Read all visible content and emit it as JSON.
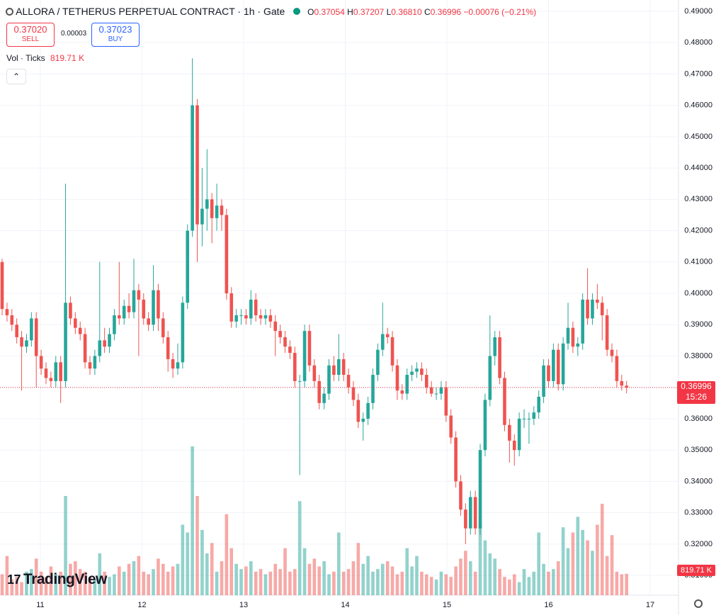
{
  "header": {
    "title": "ALLORA / TETHERUS PERPETUAL CONTRACT · 1h · Gate",
    "ohlc_labels": [
      "O",
      "H",
      "L",
      "C"
    ],
    "ohlc": [
      "0.37054",
      "0.37207",
      "0.36810",
      "0.36996"
    ],
    "change": "−0.00076 (−0.21%)",
    "sell_price": "0.37020",
    "sell": "SELL",
    "spread": "0.00003",
    "buy_price": "0.37023",
    "buy": "BUY",
    "volume_title": "Vol · Ticks",
    "volume_value": "819.71 K",
    "last_price": "0.36996",
    "countdown": "15:26",
    "logo": "TradingView"
  },
  "chart_data": {
    "type": "candlestick",
    "up_color": "#26a69a",
    "down_color": "#ef5350",
    "grid": true,
    "xlim": [
      10.603,
      17.279
    ],
    "xticks": [
      11,
      12,
      13,
      14,
      15,
      16,
      17
    ],
    "ylim": [
      0.3037,
      0.4936
    ],
    "yticks": [
      {
        "value": 0.31,
        "label": "0.31000"
      },
      {
        "value": 0.32,
        "label": "0.32000"
      },
      {
        "value": 0.33,
        "label": "0.33000"
      },
      {
        "value": 0.34,
        "label": "0.34000"
      },
      {
        "value": 0.35,
        "label": "0.35000"
      },
      {
        "value": 0.36,
        "label": "0.36000"
      },
      {
        "value": 0.37,
        "label": "0.37000"
      },
      {
        "value": 0.38,
        "label": "0.38000"
      },
      {
        "value": 0.39,
        "label": "0.39000"
      },
      {
        "value": 0.4,
        "label": "0.40000"
      },
      {
        "value": 0.41,
        "label": "0.41000"
      },
      {
        "value": 0.42,
        "label": "0.42000"
      },
      {
        "value": 0.43,
        "label": "0.43000"
      },
      {
        "value": 0.44,
        "label": "0.44000"
      },
      {
        "value": 0.45,
        "label": "0.45000"
      },
      {
        "value": 0.46,
        "label": "0.46000"
      },
      {
        "value": 0.47,
        "label": "0.47000"
      },
      {
        "value": 0.48,
        "label": "0.48000"
      },
      {
        "value": 0.49,
        "label": "0.49000"
      }
    ],
    "x": [
      10.624,
      10.672,
      10.72,
      10.768,
      10.816,
      10.864,
      10.912,
      10.96,
      11.008,
      11.056,
      11.104,
      11.152,
      11.2,
      11.248,
      11.296,
      11.344,
      11.392,
      11.44,
      11.488,
      11.536,
      11.584,
      11.632,
      11.68,
      11.728,
      11.776,
      11.824,
      11.872,
      11.92,
      11.968,
      12.016,
      12.064,
      12.112,
      12.16,
      12.208,
      12.256,
      12.304,
      12.352,
      12.4,
      12.448,
      12.496,
      12.544,
      12.592,
      12.64,
      12.688,
      12.736,
      12.784,
      12.832,
      12.88,
      12.928,
      12.976,
      13.024,
      13.072,
      13.12,
      13.168,
      13.216,
      13.264,
      13.312,
      13.36,
      13.408,
      13.456,
      13.504,
      13.552,
      13.6,
      13.648,
      13.696,
      13.744,
      13.792,
      13.84,
      13.888,
      13.936,
      13.984,
      14.032,
      14.08,
      14.128,
      14.176,
      14.224,
      14.272,
      14.32,
      14.368,
      14.416,
      14.464,
      14.512,
      14.56,
      14.608,
      14.656,
      14.704,
      14.752,
      14.8,
      14.848,
      14.896,
      14.944,
      14.992,
      15.04,
      15.088,
      15.136,
      15.184,
      15.232,
      15.28,
      15.328,
      15.376,
      15.424,
      15.472,
      15.52,
      15.568,
      15.616,
      15.664,
      15.712,
      15.76,
      15.808,
      15.856,
      15.904,
      15.952,
      16.0,
      16.048,
      16.096,
      16.144,
      16.192,
      16.24,
      16.288,
      16.336,
      16.384,
      16.432,
      16.48,
      16.528,
      16.576,
      16.624,
      16.672,
      16.72,
      16.768
    ],
    "open": [
      0.41,
      0.395,
      0.393,
      0.39,
      0.386,
      0.383,
      0.385,
      0.392,
      0.38,
      0.376,
      0.373,
      0.372,
      0.378,
      0.372,
      0.397,
      0.392,
      0.389,
      0.387,
      0.378,
      0.376,
      0.38,
      0.385,
      0.383,
      0.387,
      0.393,
      0.392,
      0.396,
      0.394,
      0.401,
      0.398,
      0.392,
      0.39,
      0.401,
      0.392,
      0.386,
      0.379,
      0.376,
      0.378,
      0.397,
      0.42,
      0.46,
      0.422,
      0.427,
      0.43,
      0.424,
      0.428,
      0.425,
      0.4,
      0.391,
      0.393,
      0.393,
      0.392,
      0.398,
      0.393,
      0.392,
      0.393,
      0.391,
      0.388,
      0.386,
      0.383,
      0.381,
      0.372,
      0.372,
      0.388,
      0.377,
      0.372,
      0.365,
      0.368,
      0.377,
      0.374,
      0.379,
      0.374,
      0.37,
      0.366,
      0.359,
      0.36,
      0.365,
      0.374,
      0.382,
      0.387,
      0.386,
      0.377,
      0.369,
      0.368,
      0.374,
      0.375,
      0.376,
      0.374,
      0.37,
      0.368,
      0.368,
      0.37,
      0.361,
      0.354,
      0.34,
      0.331,
      0.325,
      0.335,
      0.325,
      0.35,
      0.366,
      0.38,
      0.386,
      0.373,
      0.358,
      0.353,
      0.35,
      0.36,
      0.36,
      0.36,
      0.362,
      0.367,
      0.377,
      0.372,
      0.382,
      0.371,
      0.384,
      0.389,
      0.383,
      0.384,
      0.398,
      0.392,
      0.398,
      0.397,
      0.393,
      0.382,
      0.38,
      0.372,
      0.37054
    ],
    "high": [
      0.411,
      0.397,
      0.395,
      0.392,
      0.388,
      0.387,
      0.394,
      0.394,
      0.382,
      0.378,
      0.375,
      0.38,
      0.38,
      0.435,
      0.399,
      0.394,
      0.391,
      0.389,
      0.38,
      0.382,
      0.41,
      0.389,
      0.389,
      0.395,
      0.41,
      0.398,
      0.4,
      0.411,
      0.403,
      0.4,
      0.394,
      0.409,
      0.403,
      0.394,
      0.388,
      0.381,
      0.384,
      0.399,
      0.422,
      0.475,
      0.462,
      0.44,
      0.446,
      0.432,
      0.435,
      0.43,
      0.427,
      0.402,
      0.395,
      0.395,
      0.395,
      0.401,
      0.4,
      0.395,
      0.395,
      0.395,
      0.393,
      0.39,
      0.388,
      0.385,
      0.383,
      0.374,
      0.39,
      0.39,
      0.379,
      0.374,
      0.37,
      0.379,
      0.38,
      0.387,
      0.381,
      0.376,
      0.372,
      0.368,
      0.362,
      0.367,
      0.376,
      0.384,
      0.397,
      0.389,
      0.388,
      0.379,
      0.371,
      0.376,
      0.377,
      0.378,
      0.378,
      0.376,
      0.372,
      0.37,
      0.372,
      0.372,
      0.363,
      0.356,
      0.342,
      0.333,
      0.337,
      0.337,
      0.352,
      0.368,
      0.393,
      0.388,
      0.388,
      0.375,
      0.36,
      0.355,
      0.362,
      0.363,
      0.362,
      0.364,
      0.369,
      0.379,
      0.379,
      0.384,
      0.384,
      0.386,
      0.397,
      0.391,
      0.386,
      0.4,
      0.408,
      0.4,
      0.403,
      0.399,
      0.395,
      0.384,
      0.382,
      0.374,
      0.37207
    ],
    "low": [
      0.393,
      0.391,
      0.388,
      0.384,
      0.369,
      0.381,
      0.383,
      0.37,
      0.374,
      0.371,
      0.37,
      0.37,
      0.365,
      0.37,
      0.39,
      0.387,
      0.385,
      0.376,
      0.374,
      0.374,
      0.378,
      0.381,
      0.381,
      0.385,
      0.39,
      0.39,
      0.392,
      0.392,
      0.38,
      0.39,
      0.388,
      0.388,
      0.388,
      0.384,
      0.375,
      0.373,
      0.374,
      0.376,
      0.395,
      0.418,
      0.41,
      0.415,
      0.42,
      0.416,
      0.42,
      0.42,
      0.398,
      0.389,
      0.389,
      0.39,
      0.39,
      0.39,
      0.391,
      0.39,
      0.39,
      0.389,
      0.38,
      0.384,
      0.381,
      0.379,
      0.37,
      0.342,
      0.37,
      0.375,
      0.37,
      0.363,
      0.363,
      0.366,
      0.372,
      0.372,
      0.372,
      0.368,
      0.364,
      0.357,
      0.353,
      0.358,
      0.363,
      0.372,
      0.38,
      0.384,
      0.375,
      0.366,
      0.366,
      0.366,
      0.372,
      0.373,
      0.372,
      0.368,
      0.367,
      0.366,
      0.366,
      0.359,
      0.352,
      0.338,
      0.329,
      0.32,
      0.323,
      0.323,
      0.323,
      0.348,
      0.364,
      0.377,
      0.371,
      0.356,
      0.346,
      0.345,
      0.348,
      0.357,
      0.352,
      0.358,
      0.36,
      0.365,
      0.37,
      0.37,
      0.369,
      0.369,
      0.382,
      0.381,
      0.38,
      0.382,
      0.39,
      0.39,
      0.395,
      0.385,
      0.38,
      0.378,
      0.37,
      0.369,
      0.3681
    ],
    "close": [
      0.395,
      0.393,
      0.39,
      0.386,
      0.383,
      0.385,
      0.392,
      0.38,
      0.376,
      0.373,
      0.372,
      0.378,
      0.372,
      0.397,
      0.392,
      0.389,
      0.387,
      0.378,
      0.376,
      0.38,
      0.385,
      0.383,
      0.387,
      0.393,
      0.392,
      0.396,
      0.394,
      0.401,
      0.398,
      0.392,
      0.39,
      0.401,
      0.392,
      0.386,
      0.379,
      0.376,
      0.378,
      0.397,
      0.42,
      0.46,
      0.422,
      0.427,
      0.43,
      0.424,
      0.428,
      0.425,
      0.4,
      0.391,
      0.393,
      0.393,
      0.392,
      0.398,
      0.393,
      0.392,
      0.393,
      0.391,
      0.388,
      0.386,
      0.383,
      0.381,
      0.372,
      0.372,
      0.388,
      0.377,
      0.372,
      0.365,
      0.368,
      0.377,
      0.374,
      0.379,
      0.374,
      0.37,
      0.366,
      0.359,
      0.36,
      0.365,
      0.374,
      0.382,
      0.387,
      0.386,
      0.377,
      0.369,
      0.368,
      0.374,
      0.375,
      0.376,
      0.374,
      0.37,
      0.368,
      0.368,
      0.37,
      0.361,
      0.354,
      0.34,
      0.331,
      0.325,
      0.335,
      0.325,
      0.35,
      0.366,
      0.38,
      0.386,
      0.373,
      0.358,
      0.353,
      0.35,
      0.36,
      0.36,
      0.36,
      0.362,
      0.367,
      0.377,
      0.372,
      0.382,
      0.371,
      0.384,
      0.389,
      0.383,
      0.384,
      0.398,
      0.392,
      0.398,
      0.397,
      0.393,
      0.382,
      0.38,
      0.372,
      0.37054,
      0.36996
    ],
    "volume": [
      800,
      1500,
      600,
      700,
      500,
      900,
      1000,
      1400,
      900,
      700,
      1100,
      800,
      900,
      3800,
      1200,
      1300,
      1000,
      900,
      700,
      600,
      1600,
      900,
      700,
      800,
      1100,
      900,
      1200,
      1300,
      1500,
      900,
      800,
      1000,
      1400,
      1200,
      900,
      1100,
      1200,
      2700,
      2400,
      5700,
      3800,
      2500,
      1600,
      2000,
      900,
      1300,
      3100,
      1800,
      1200,
      1000,
      1100,
      1300,
      900,
      1000,
      800,
      900,
      1200,
      1000,
      1800,
      900,
      1000,
      3600,
      1800,
      1200,
      1400,
      1100,
      1300,
      800,
      900,
      2400,
      900,
      1000,
      1300,
      2000,
      1200,
      1500,
      900,
      1000,
      1200,
      1300,
      1100,
      800,
      900,
      1800,
      1100,
      1500,
      900,
      800,
      700,
      600,
      900,
      800,
      700,
      1100,
      1400,
      1700,
      1300,
      900,
      2800,
      2100,
      1600,
      1400,
      1000,
      700,
      600,
      800,
      500,
      1000,
      700,
      900,
      2400,
      1200,
      900,
      1000,
      1300,
      2600,
      1800,
      2400,
      3000,
      2500,
      2100,
      1700,
      2700,
      3500,
      1500,
      2300,
      900,
      800,
      819.71
    ]
  }
}
